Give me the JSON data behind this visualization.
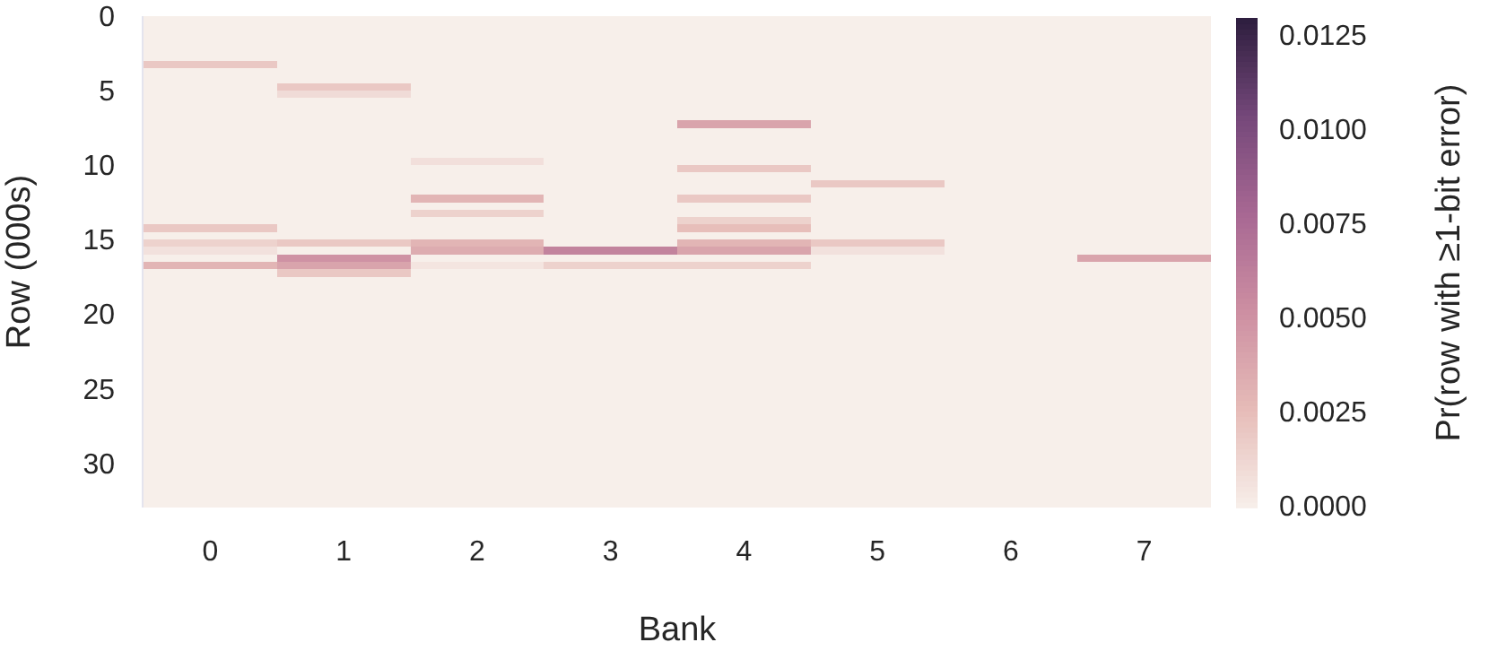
{
  "chart_data": {
    "type": "heatmap",
    "xlabel": "Bank",
    "ylabel": "Row (000s)",
    "clabel": "Pr(row with ≥1-bit error)",
    "categories": [
      "0",
      "1",
      "2",
      "3",
      "4",
      "5",
      "6",
      "7"
    ],
    "ylim": [
      33,
      0
    ],
    "yticks": [
      0,
      5,
      10,
      15,
      20,
      25,
      30
    ],
    "clim": [
      0,
      0.013
    ],
    "cticks": [
      {
        "value": 0,
        "label": "0.0000"
      },
      0.0025,
      {
        "value": 0.005,
        "label": "0.0050"
      },
      0.0075,
      {
        "value": 0.01,
        "label": "0.0100"
      },
      0.0125
    ],
    "cells": [
      [
        0,
        0,
        0,
        0,
        0,
        0,
        0,
        0
      ],
      [
        0,
        0,
        0,
        0,
        0,
        0,
        0,
        0
      ],
      [
        0,
        0,
        0,
        0,
        0,
        0,
        0,
        0
      ],
      [
        0,
        0,
        0,
        0,
        0,
        0,
        0,
        0
      ],
      [
        0,
        0,
        0,
        0,
        0,
        0,
        0,
        0
      ],
      [
        0,
        0,
        0,
        0,
        0,
        0,
        0,
        0
      ],
      [
        0.002,
        0,
        0,
        0,
        0,
        0,
        0,
        0
      ],
      [
        0,
        0,
        0,
        0,
        0,
        0,
        0,
        0
      ],
      [
        0,
        0,
        0,
        0,
        0,
        0,
        0,
        0
      ],
      [
        0,
        0.002,
        0,
        0,
        0,
        0,
        0,
        0
      ],
      [
        0,
        0.001,
        0,
        0,
        0,
        0,
        0,
        0
      ],
      [
        0,
        0,
        0,
        0,
        0,
        0,
        0,
        0
      ],
      [
        0,
        0,
        0,
        0,
        0,
        0,
        0,
        0
      ],
      [
        0,
        0,
        0,
        0,
        0,
        0,
        0,
        0
      ],
      [
        0,
        0,
        0,
        0,
        0.004,
        0,
        0,
        0
      ],
      [
        0,
        0,
        0,
        0,
        0,
        0,
        0,
        0
      ],
      [
        0,
        0,
        0,
        0,
        0,
        0,
        0,
        0
      ],
      [
        0,
        0,
        0,
        0,
        0,
        0,
        0,
        0
      ],
      [
        0,
        0,
        0,
        0,
        0,
        0,
        0,
        0
      ],
      [
        0,
        0,
        0.0008,
        0,
        0,
        0,
        0,
        0
      ],
      [
        0,
        0,
        0,
        0,
        0.002,
        0,
        0,
        0
      ],
      [
        0,
        0,
        0,
        0,
        0,
        0,
        0,
        0
      ],
      [
        0,
        0,
        0,
        0,
        0,
        0.002,
        0,
        0
      ],
      [
        0,
        0,
        0,
        0,
        0,
        0,
        0,
        0
      ],
      [
        0,
        0,
        0.003,
        0,
        0.002,
        0,
        0,
        0
      ],
      [
        0,
        0,
        0,
        0,
        0,
        0,
        0,
        0
      ],
      [
        0,
        0,
        0.0015,
        0,
        0,
        0,
        0,
        0
      ],
      [
        0,
        0,
        0,
        0,
        0.0015,
        0,
        0,
        0
      ],
      [
        0.002,
        0,
        0,
        0,
        0.0025,
        0,
        0,
        0
      ],
      [
        0,
        0,
        0,
        0,
        0,
        0,
        0,
        0
      ],
      [
        0.0015,
        0.002,
        0.003,
        0,
        0.003,
        0.002,
        0,
        0
      ],
      [
        0.0007,
        0,
        0.0035,
        0.006,
        0.004,
        0.0007,
        0,
        0
      ],
      [
        0,
        0.005,
        0,
        0,
        0,
        0,
        0,
        0.004
      ],
      [
        0.003,
        0.004,
        0.0005,
        0.0015,
        0.0015,
        0,
        0,
        0
      ],
      [
        0,
        0.002,
        0,
        0,
        0,
        0,
        0,
        0
      ],
      [
        0,
        0,
        0,
        0,
        0,
        0,
        0,
        0
      ],
      [
        0,
        0,
        0,
        0,
        0,
        0,
        0,
        0
      ],
      [
        0,
        0,
        0,
        0,
        0,
        0,
        0,
        0
      ],
      [
        0,
        0,
        0,
        0,
        0,
        0,
        0,
        0
      ],
      [
        0,
        0,
        0,
        0,
        0,
        0,
        0,
        0
      ],
      [
        0,
        0,
        0,
        0,
        0,
        0,
        0,
        0
      ],
      [
        0,
        0,
        0,
        0,
        0,
        0,
        0,
        0
      ],
      [
        0,
        0,
        0,
        0,
        0,
        0,
        0,
        0
      ],
      [
        0,
        0,
        0,
        0,
        0,
        0,
        0,
        0
      ],
      [
        0,
        0,
        0,
        0,
        0,
        0,
        0,
        0
      ],
      [
        0,
        0,
        0,
        0,
        0,
        0,
        0,
        0
      ],
      [
        0,
        0,
        0,
        0,
        0,
        0,
        0,
        0
      ],
      [
        0,
        0,
        0,
        0,
        0,
        0,
        0,
        0
      ],
      [
        0,
        0,
        0,
        0,
        0,
        0,
        0,
        0
      ],
      [
        0,
        0,
        0,
        0,
        0,
        0,
        0,
        0
      ],
      [
        0,
        0,
        0,
        0,
        0,
        0,
        0,
        0
      ],
      [
        0,
        0,
        0,
        0,
        0,
        0,
        0,
        0
      ],
      [
        0,
        0,
        0,
        0,
        0,
        0,
        0,
        0
      ],
      [
        0,
        0,
        0,
        0,
        0,
        0,
        0,
        0
      ],
      [
        0,
        0,
        0,
        0,
        0,
        0,
        0,
        0
      ],
      [
        0,
        0,
        0,
        0,
        0,
        0,
        0,
        0
      ],
      [
        0,
        0,
        0,
        0,
        0,
        0,
        0,
        0
      ],
      [
        0,
        0,
        0,
        0,
        0,
        0,
        0,
        0
      ],
      [
        0,
        0,
        0,
        0,
        0,
        0,
        0,
        0
      ],
      [
        0,
        0,
        0,
        0,
        0,
        0,
        0,
        0
      ],
      [
        0,
        0,
        0,
        0,
        0,
        0,
        0,
        0
      ],
      [
        0,
        0,
        0,
        0,
        0,
        0,
        0,
        0
      ],
      [
        0,
        0,
        0,
        0,
        0,
        0,
        0,
        0
      ],
      [
        0,
        0,
        0,
        0,
        0,
        0,
        0,
        0
      ],
      [
        0,
        0,
        0,
        0,
        0,
        0,
        0,
        0
      ],
      [
        0,
        0,
        0,
        0,
        0,
        0,
        0,
        0
      ]
    ]
  }
}
